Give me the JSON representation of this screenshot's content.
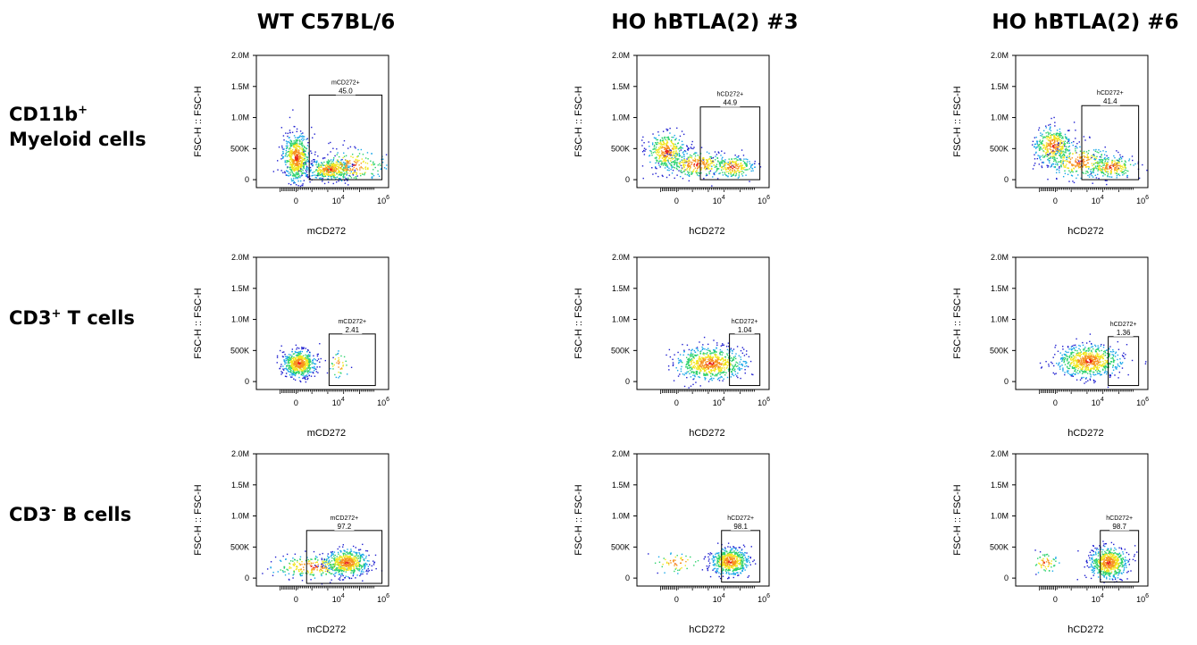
{
  "columns": [
    "WT C57BL/6",
    "HO hBTLA(2) #3",
    "HO hBTLA(2) #6"
  ],
  "rows": [
    {
      "line1_base": "CD11b",
      "line1_sup": "+",
      "line2": "Myeloid cells"
    },
    {
      "line1_base": "CD3",
      "line1_sup": "+",
      "line1_rest": " T cells"
    },
    {
      "line1_base": "CD3",
      "line1_sup": "-",
      "line1_rest": " B cells"
    }
  ],
  "colors": {
    "density": [
      "#1f1fd0",
      "#16a6e8",
      "#2bd26b",
      "#f2e51c",
      "#f7931e",
      "#e8221b"
    ],
    "gate": "#000000"
  },
  "chart_data": [
    {
      "type": "scatter",
      "row": 0,
      "col": 0,
      "xlabel": "mCD272",
      "ylabel": "FSC-H :: FSC-H",
      "y_ticks": [
        "0",
        "500K",
        "1.0M",
        "1.5M",
        "2.0M"
      ],
      "x_ticks": [
        "0",
        "10^4",
        "10^6"
      ],
      "ylim": [
        0,
        2000000
      ],
      "x_scale": "biexponential",
      "gate_name": "mCD272+",
      "gate_percent": "45.0"
    },
    {
      "type": "scatter",
      "row": 0,
      "col": 1,
      "xlabel": "hCD272",
      "ylabel": "FSC-H :: FSC-H",
      "y_ticks": [
        "0",
        "500K",
        "1.0M",
        "1.5M",
        "2.0M"
      ],
      "x_ticks": [
        "0",
        "10^4",
        "10^6"
      ],
      "ylim": [
        0,
        2000000
      ],
      "x_scale": "biexponential",
      "gate_name": "hCD272+",
      "gate_percent": "44.9"
    },
    {
      "type": "scatter",
      "row": 0,
      "col": 2,
      "xlabel": "hCD272",
      "ylabel": "FSC-H :: FSC-H",
      "y_ticks": [
        "0",
        "500K",
        "1.0M",
        "1.5M",
        "2.0M"
      ],
      "x_ticks": [
        "0",
        "10^4",
        "10^6"
      ],
      "ylim": [
        0,
        2000000
      ],
      "x_scale": "biexponential",
      "gate_name": "hCD272+",
      "gate_percent": "41.4"
    },
    {
      "type": "scatter",
      "row": 1,
      "col": 0,
      "xlabel": "mCD272",
      "ylabel": "FSC-H :: FSC-H",
      "y_ticks": [
        "0",
        "500K",
        "1.0M",
        "1.5M",
        "2.0M"
      ],
      "x_ticks": [
        "0",
        "10^4",
        "10^6"
      ],
      "ylim": [
        0,
        2000000
      ],
      "x_scale": "biexponential",
      "gate_name": "mCD272+",
      "gate_percent": "2.41"
    },
    {
      "type": "scatter",
      "row": 1,
      "col": 1,
      "xlabel": "hCD272",
      "ylabel": "FSC-H :: FSC-H",
      "y_ticks": [
        "0",
        "500K",
        "1.0M",
        "1.5M",
        "2.0M"
      ],
      "x_ticks": [
        "0",
        "10^4",
        "10^6"
      ],
      "ylim": [
        0,
        2000000
      ],
      "x_scale": "biexponential",
      "gate_name": "hCD272+",
      "gate_percent": "1.04"
    },
    {
      "type": "scatter",
      "row": 1,
      "col": 2,
      "xlabel": "hCD272",
      "ylabel": "FSC-H :: FSC-H",
      "y_ticks": [
        "0",
        "500K",
        "1.0M",
        "1.5M",
        "2.0M"
      ],
      "x_ticks": [
        "0",
        "10^4",
        "10^6"
      ],
      "ylim": [
        0,
        2000000
      ],
      "x_scale": "biexponential",
      "gate_name": "hCD272+",
      "gate_percent": "1.36"
    },
    {
      "type": "scatter",
      "row": 2,
      "col": 0,
      "xlabel": "mCD272",
      "ylabel": "FSC-H :: FSC-H",
      "y_ticks": [
        "0",
        "500K",
        "1.0M",
        "1.5M",
        "2.0M"
      ],
      "x_ticks": [
        "0",
        "10^4",
        "10^6"
      ],
      "ylim": [
        0,
        2000000
      ],
      "x_scale": "biexponential",
      "gate_name": "mCD272+",
      "gate_percent": "97.2"
    },
    {
      "type": "scatter",
      "row": 2,
      "col": 1,
      "xlabel": "hCD272",
      "ylabel": "FSC-H :: FSC-H",
      "y_ticks": [
        "0",
        "500K",
        "1.0M",
        "1.5M",
        "2.0M"
      ],
      "x_ticks": [
        "0",
        "10^4",
        "10^6"
      ],
      "ylim": [
        0,
        2000000
      ],
      "x_scale": "biexponential",
      "gate_name": "hCD272+",
      "gate_percent": "98.1"
    },
    {
      "type": "scatter",
      "row": 2,
      "col": 2,
      "xlabel": "hCD272",
      "ylabel": "FSC-H :: FSC-H",
      "y_ticks": [
        "0",
        "500K",
        "1.0M",
        "1.5M",
        "2.0M"
      ],
      "x_ticks": [
        "0",
        "10^4",
        "10^6"
      ],
      "ylim": [
        0,
        2000000
      ],
      "x_scale": "biexponential",
      "gate_name": "hCD272+",
      "gate_percent": "98.7"
    }
  ]
}
